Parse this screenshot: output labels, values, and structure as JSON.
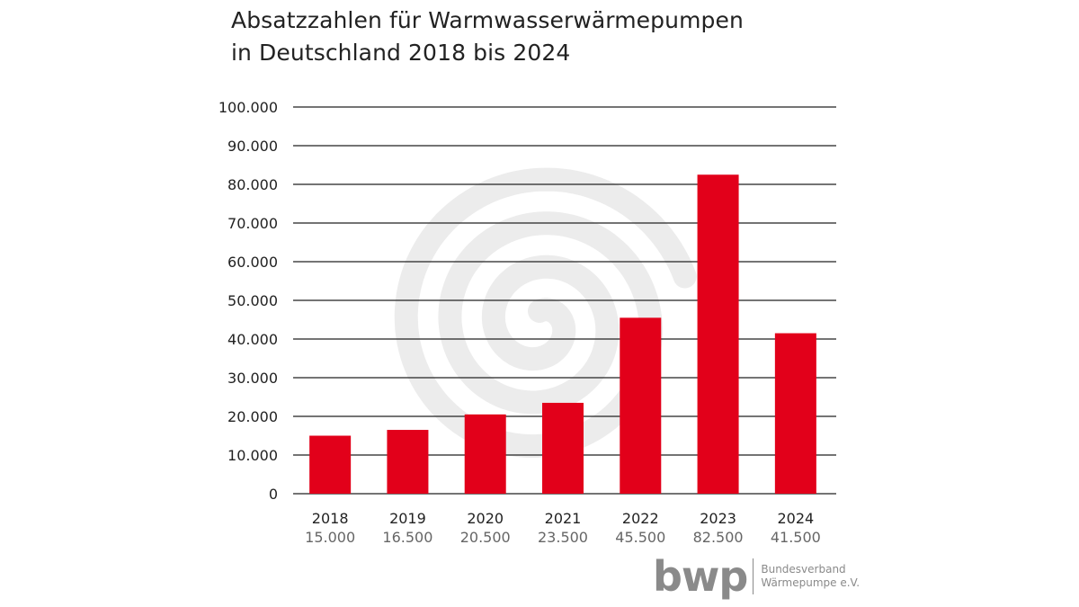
{
  "title_lines": [
    "Absatzzahlen für Warmwasserwärmepumpen",
    "in Deutschland 2018 bis 2024"
  ],
  "logo": {
    "mark": "bwp",
    "line1": "Bundesverband",
    "line2": "Wärmepumpe e.V."
  },
  "colors": {
    "bar": "#e2001a",
    "grid": "#222222",
    "text": "#222222",
    "subtext": "#666666",
    "swirl": "#ececec",
    "logo": "#8a8a8a"
  },
  "chart_data": {
    "type": "bar",
    "title": "Absatzzahlen für Warmwasserwärmepumpen in Deutschland 2018 bis 2024",
    "categories": [
      "2018",
      "2019",
      "2020",
      "2021",
      "2022",
      "2023",
      "2024"
    ],
    "values": [
      15000,
      16500,
      20500,
      23500,
      45500,
      82500,
      41500
    ],
    "value_labels": [
      "15.000",
      "16.500",
      "20.500",
      "23.500",
      "45.500",
      "82.500",
      "41.500"
    ],
    "yticks": [
      0,
      10000,
      20000,
      30000,
      40000,
      50000,
      60000,
      70000,
      80000,
      90000,
      100000
    ],
    "ytick_labels": [
      "0",
      "10.000",
      "20.000",
      "30.000",
      "40.000",
      "50.000",
      "60.000",
      "70.000",
      "80.000",
      "90.000",
      "100.000"
    ],
    "ylim": [
      0,
      100000
    ],
    "grid": true,
    "xlabel": "",
    "ylabel": ""
  }
}
